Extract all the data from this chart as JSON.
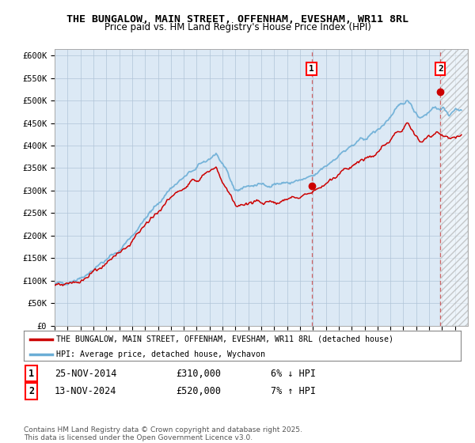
{
  "title": "THE BUNGALOW, MAIN STREET, OFFENHAM, EVESHAM, WR11 8RL",
  "subtitle": "Price paid vs. HM Land Registry's House Price Index (HPI)",
  "ylabel_ticks": [
    "£0",
    "£50K",
    "£100K",
    "£150K",
    "£200K",
    "£250K",
    "£300K",
    "£350K",
    "£400K",
    "£450K",
    "£500K",
    "£550K",
    "£600K"
  ],
  "ytick_values": [
    0,
    50000,
    100000,
    150000,
    200000,
    250000,
    300000,
    350000,
    400000,
    450000,
    500000,
    550000,
    600000
  ],
  "xlim_start": 1995,
  "xlim_end": 2027,
  "ylim_min": 0,
  "ylim_max": 615000,
  "hpi_color": "#6baed6",
  "price_color": "#cc0000",
  "background_color": "#ffffff",
  "plot_bg_color": "#dce9f5",
  "grid_color": "#b0c4d8",
  "marker1_date_x": 2014.9,
  "marker1_price": 310000,
  "marker2_date_x": 2024.87,
  "marker2_price": 520000,
  "legend_line1": "THE BUNGALOW, MAIN STREET, OFFENHAM, EVESHAM, WR11 8RL (detached house)",
  "legend_line2": "HPI: Average price, detached house, Wychavon",
  "annotation1": [
    "1",
    "25-NOV-2014",
    "£310,000",
    "6% ↓ HPI"
  ],
  "annotation2": [
    "2",
    "13-NOV-2024",
    "£520,000",
    "7% ↑ HPI"
  ],
  "footer": "Contains HM Land Registry data © Crown copyright and database right 2025.\nThis data is licensed under the Open Government Licence v3.0.",
  "title_fontsize": 9.5,
  "subtitle_fontsize": 8.5
}
